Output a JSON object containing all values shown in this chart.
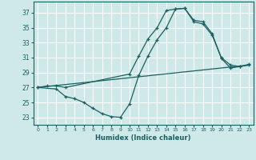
{
  "xlabel": "Humidex (Indice chaleur)",
  "background_color": "#cfe8e8",
  "grid_color": "#ffffff",
  "line_color": "#1a6060",
  "xlim": [
    -0.5,
    23.5
  ],
  "ylim": [
    22.0,
    38.5
  ],
  "yticks": [
    23,
    25,
    27,
    29,
    31,
    33,
    35,
    37
  ],
  "xticks": [
    0,
    1,
    2,
    3,
    4,
    5,
    6,
    7,
    8,
    9,
    10,
    11,
    12,
    13,
    14,
    15,
    16,
    17,
    18,
    19,
    20,
    21,
    22,
    23
  ],
  "line1_x": [
    0,
    1,
    2,
    3,
    10,
    11,
    12,
    13,
    14,
    15,
    16,
    17,
    18,
    19,
    20,
    21,
    22,
    23
  ],
  "line1_y": [
    27,
    27.2,
    27.2,
    27.0,
    28.8,
    31.2,
    33.5,
    35.0,
    37.3,
    37.5,
    37.6,
    35.8,
    35.5,
    34.0,
    31.0,
    30.0,
    29.8,
    30.0
  ],
  "line2_x": [
    0,
    2,
    3,
    4,
    5,
    6,
    7,
    8,
    9,
    10,
    11,
    12,
    13,
    14,
    15,
    16,
    17,
    18,
    19,
    20,
    21,
    22,
    23
  ],
  "line2_y": [
    27.0,
    26.8,
    25.8,
    25.5,
    25.0,
    24.2,
    23.5,
    23.1,
    23.0,
    24.8,
    28.6,
    31.2,
    33.4,
    35.0,
    37.5,
    37.6,
    36.0,
    35.8,
    34.2,
    30.9,
    29.6,
    29.8,
    30.1
  ],
  "line3_x": [
    0,
    23
  ],
  "line3_y": [
    27.0,
    30.0
  ]
}
